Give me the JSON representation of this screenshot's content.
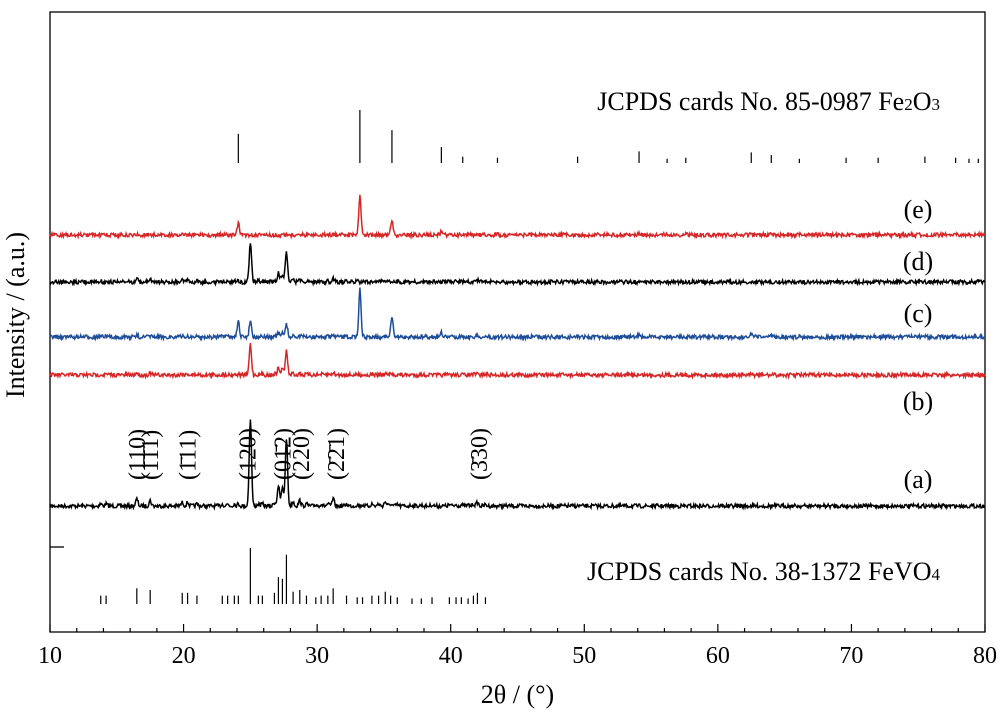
{
  "chart_data": {
    "type": "line",
    "xlabel": "2θ / (°)",
    "ylabel": "Intensity / (a.u.)",
    "xlim": [
      10,
      80
    ],
    "xticks": [
      10,
      20,
      30,
      40,
      50,
      60,
      70,
      80
    ],
    "colors": {
      "red": "#d62728",
      "black": "#000000",
      "blue": "#1f4e99"
    },
    "references": [
      {
        "id": "fe2o3",
        "label_prefix": "JCPDS cards No. 85-0987 Fe",
        "label_sub1": "2",
        "label_mid": "O",
        "label_sub2": "3",
        "peaks": [
          [
            24.1,
            0.55
          ],
          [
            33.2,
            1.0
          ],
          [
            35.6,
            0.62
          ],
          [
            39.3,
            0.3
          ],
          [
            40.9,
            0.12
          ],
          [
            43.5,
            0.1
          ],
          [
            49.5,
            0.12
          ],
          [
            54.1,
            0.22
          ],
          [
            56.2,
            0.08
          ],
          [
            57.6,
            0.1
          ],
          [
            62.5,
            0.2
          ],
          [
            64.0,
            0.15
          ],
          [
            66.1,
            0.08
          ],
          [
            69.6,
            0.1
          ],
          [
            72.0,
            0.1
          ],
          [
            75.5,
            0.12
          ],
          [
            77.8,
            0.1
          ],
          [
            78.8,
            0.08
          ],
          [
            79.5,
            0.08
          ]
        ]
      },
      {
        "id": "fevo4",
        "label_prefix": "JCPDS cards No. 38-1372 FeVO",
        "label_sub": "4",
        "peaks": [
          [
            13.8,
            0.15
          ],
          [
            14.2,
            0.15
          ],
          [
            16.5,
            0.28
          ],
          [
            17.5,
            0.25
          ],
          [
            19.9,
            0.2
          ],
          [
            20.3,
            0.2
          ],
          [
            21.0,
            0.15
          ],
          [
            22.9,
            0.15
          ],
          [
            23.3,
            0.15
          ],
          [
            23.8,
            0.15
          ],
          [
            24.1,
            0.15
          ],
          [
            25.0,
            1.0
          ],
          [
            25.6,
            0.15
          ],
          [
            25.9,
            0.15
          ],
          [
            26.8,
            0.2
          ],
          [
            27.1,
            0.48
          ],
          [
            27.4,
            0.45
          ],
          [
            27.7,
            0.88
          ],
          [
            28.2,
            0.22
          ],
          [
            28.7,
            0.25
          ],
          [
            29.2,
            0.15
          ],
          [
            29.9,
            0.12
          ],
          [
            30.3,
            0.15
          ],
          [
            30.8,
            0.15
          ],
          [
            31.2,
            0.28
          ],
          [
            32.2,
            0.15
          ],
          [
            33.0,
            0.12
          ],
          [
            33.4,
            0.12
          ],
          [
            34.1,
            0.15
          ],
          [
            34.6,
            0.15
          ],
          [
            35.1,
            0.22
          ],
          [
            35.5,
            0.15
          ],
          [
            36.0,
            0.12
          ],
          [
            37.1,
            0.1
          ],
          [
            37.8,
            0.1
          ],
          [
            38.6,
            0.12
          ],
          [
            39.9,
            0.12
          ],
          [
            40.4,
            0.12
          ],
          [
            40.8,
            0.12
          ],
          [
            41.3,
            0.1
          ],
          [
            41.7,
            0.15
          ],
          [
            42.0,
            0.2
          ],
          [
            42.6,
            0.12
          ]
        ]
      }
    ],
    "series": [
      {
        "name": "(a)",
        "color": "black",
        "type": "fevo4",
        "scale": 1.0
      },
      {
        "name": "(b)",
        "color": "red",
        "type": "fevo4",
        "scale": 0.35
      },
      {
        "name": "(c)",
        "color": "blue",
        "type": "mixed",
        "scale": 0.55
      },
      {
        "name": "(d)",
        "color": "black",
        "type": "fevo4",
        "scale": 0.45
      },
      {
        "name": "(e)",
        "color": "red",
        "type": "fe2o3",
        "scale": 0.45
      }
    ],
    "annotations": [
      {
        "text": "(110)",
        "x": 16.5
      },
      {
        "text": "(1̄1̄1)",
        "x": 17.5
      },
      {
        "text": "(1̄11)",
        "x": 20.3
      },
      {
        "text": "(120)",
        "x": 24.8
      },
      {
        "text": "(01̄2)",
        "x": 27.4
      },
      {
        "text": "(220)",
        "x": 28.8
      },
      {
        "text": "(2̄2̄1)",
        "x": 31.4
      },
      {
        "text": "(3̄30)",
        "x": 42.1
      }
    ]
  }
}
